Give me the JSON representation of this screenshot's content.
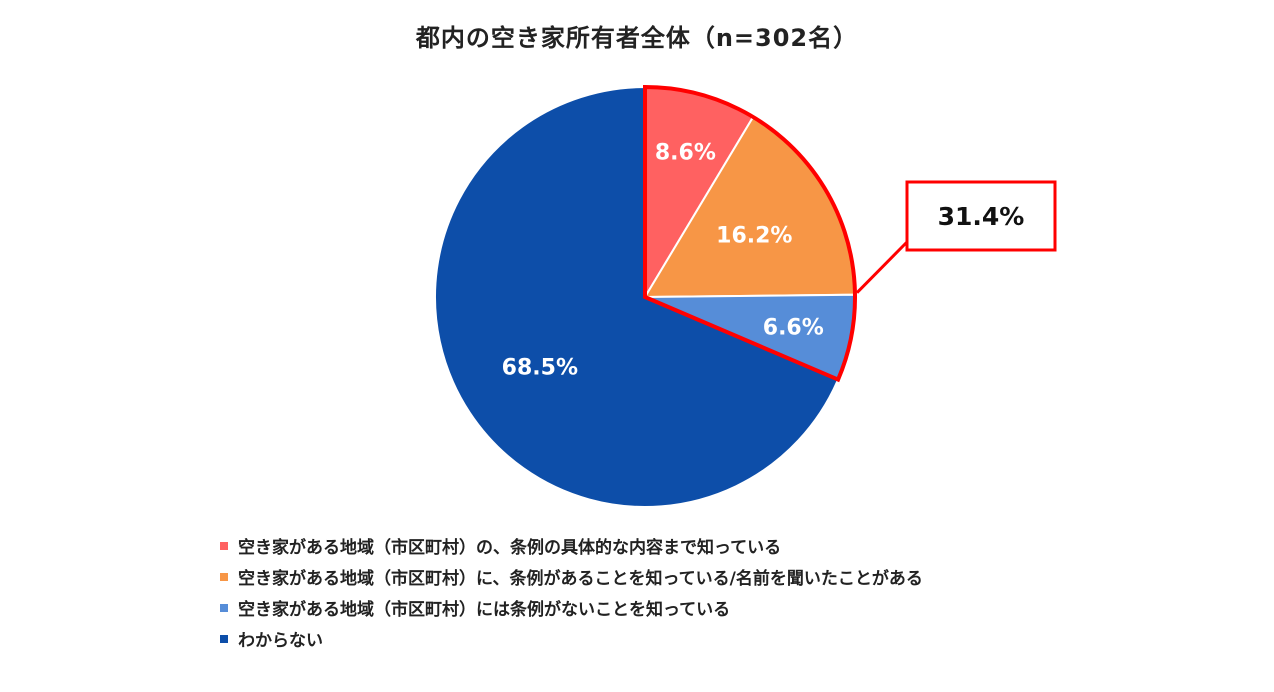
{
  "chart_data": {
    "type": "pie",
    "title": "都内の空き家所有者全体（n=302名）",
    "categories": [
      "空き家がある地域（市区町村）の、条例の具体的な内容まで知っている",
      "空き家がある地域（市区町村）に、条例があることを知っている/名前を聞いたことがある",
      "空き家がある地域（市区町村）には条例がないことを知っている",
      "わからない"
    ],
    "values": [
      8.6,
      16.2,
      6.6,
      68.5
    ],
    "value_labels": [
      "8.6%",
      "16.2%",
      "6.6%",
      "68.5%"
    ],
    "colors": [
      "#ff6161",
      "#f79646",
      "#568dd8",
      "#0d4ea9"
    ],
    "highlight": {
      "label": "31.4%",
      "slices": [
        0,
        1,
        2
      ],
      "color": "#ff0000"
    },
    "legend_position": "bottom-left"
  }
}
